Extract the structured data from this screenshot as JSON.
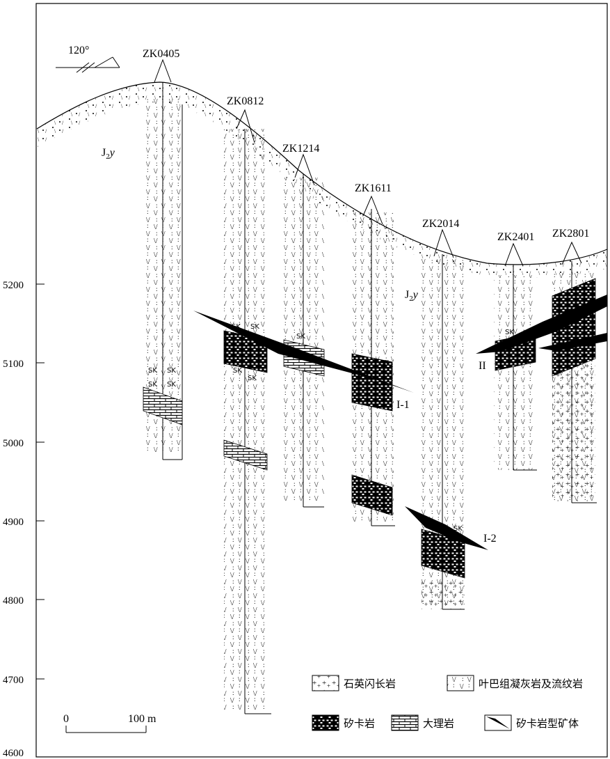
{
  "orientation": {
    "label": "120°"
  },
  "elevation_axis": {
    "ticks": [
      "5200",
      "5100",
      "5000",
      "4900",
      "4800",
      "4700",
      "4600"
    ]
  },
  "formation_labels": [
    {
      "id": "upper",
      "text": "J2y",
      "base": "J",
      "sub": "2",
      "sup": "y"
    },
    {
      "id": "lower",
      "text": "J2y",
      "base": "J",
      "sub": "2",
      "sup": "y"
    }
  ],
  "drillholes": [
    {
      "id": "ZK0405",
      "label": "ZK0405"
    },
    {
      "id": "ZK0812",
      "label": "ZK0812"
    },
    {
      "id": "ZK1214",
      "label": "ZK1214"
    },
    {
      "id": "ZK1611",
      "label": "ZK1611"
    },
    {
      "id": "ZK2014",
      "label": "ZK2014"
    },
    {
      "id": "ZK2401",
      "label": "ZK2401"
    },
    {
      "id": "ZK2801",
      "label": "ZK2801"
    }
  ],
  "ore_bodies": [
    {
      "id": "I-1",
      "label": "I-1"
    },
    {
      "id": "I-2",
      "label": "I-2"
    },
    {
      "id": "II",
      "label": "II"
    }
  ],
  "skarn_tag": "SK",
  "scale_bar": {
    "zero": "0",
    "length": "100 m"
  },
  "legend": {
    "quartz_diorite": "石英闪长岩",
    "tuff_rhyolite": "叶巴组凝灰岩及流纹岩",
    "skarn": "矽卡岩",
    "marble": "大理岩",
    "skarn_ore": "矽卡岩型矿体"
  }
}
